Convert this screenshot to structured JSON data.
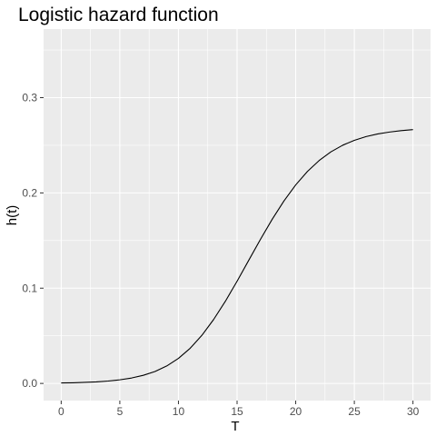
{
  "chart_data": {
    "type": "line",
    "title": "Logistic hazard function",
    "xlabel": "T",
    "ylabel": "h(t)",
    "xlim": [
      -1.5,
      31.5
    ],
    "ylim": [
      -0.018,
      0.372
    ],
    "x_ticks": [
      0,
      5,
      10,
      15,
      20,
      25,
      30
    ],
    "y_ticks": [
      0.0,
      0.1,
      0.2,
      0.3
    ],
    "x_tick_labels": [
      "0",
      "5",
      "10",
      "15",
      "20",
      "25",
      "30"
    ],
    "y_tick_labels": [
      "0.0",
      "0.1",
      "0.2",
      "0.3"
    ],
    "grid": true,
    "background": "#ebebeb",
    "grid_color": "#ffffff",
    "line_color": "#000000",
    "series": [
      {
        "x": [
          0,
          1,
          2,
          3,
          4,
          5,
          6,
          7,
          8,
          9,
          10,
          11,
          12,
          13,
          14,
          15,
          16,
          17,
          18,
          19,
          20,
          21,
          22,
          23,
          24,
          25,
          26,
          27,
          28,
          29,
          30
        ],
        "y": [
          0.0005,
          0.0007,
          0.0011,
          0.0016,
          0.0025,
          0.0038,
          0.0057,
          0.0085,
          0.0125,
          0.0183,
          0.0263,
          0.0369,
          0.0505,
          0.0671,
          0.0862,
          0.1073,
          0.1294,
          0.1514,
          0.1724,
          0.1916,
          0.2084,
          0.2225,
          0.234,
          0.2431,
          0.25,
          0.2552,
          0.2591,
          0.2619,
          0.2639,
          0.2654,
          0.2665
        ]
      }
    ]
  }
}
